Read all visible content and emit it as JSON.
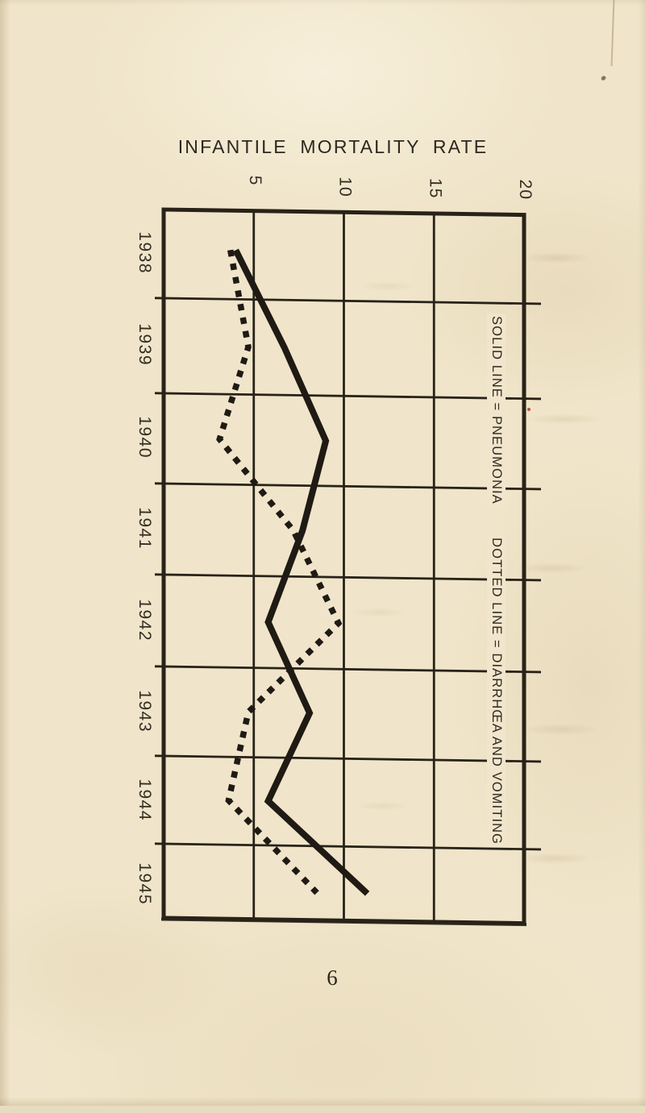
{
  "page": {
    "title": "INFANTILE MORTALITY RATE",
    "page_number": "6"
  },
  "chart_data": {
    "type": "line",
    "title": "INFANTILE MORTALITY RATE",
    "orientation": "rotated chart: year categories run top-to-bottom on the left edge, rate values run left-to-right along the top edge; all axis text is rotated 90 degrees",
    "categories": [
      "1938",
      "1939",
      "1940",
      "1941",
      "1942",
      "1943",
      "1944",
      "1945"
    ],
    "value_axis": {
      "position": "top",
      "ticks": [
        5,
        10,
        15,
        20
      ],
      "range": [
        0,
        20
      ],
      "tick_labels_rotated_deg": 90
    },
    "series": [
      {
        "name": "PNEUMONIA",
        "line_style": "solid",
        "values": [
          4.0,
          6.7,
          9.0,
          7.7,
          5.8,
          8.1,
          5.8,
          11.3
        ]
      },
      {
        "name": "DIARRHŒA AND VOMITING",
        "line_style": "dotted",
        "values": [
          3.7,
          4.7,
          3.1,
          7.2,
          9.7,
          4.7,
          3.6,
          8.5
        ]
      }
    ],
    "legend": [
      "SOLID LINE = PNEUMONIA",
      "DOTTED LINE = DIARRHŒA AND VOMITING"
    ],
    "legend_position": "inside right column, rotated 90 degrees, text breaks the gridlines",
    "grid": "on",
    "colors": {
      "ink": "#282218",
      "paper": "#f0e5ca"
    }
  }
}
